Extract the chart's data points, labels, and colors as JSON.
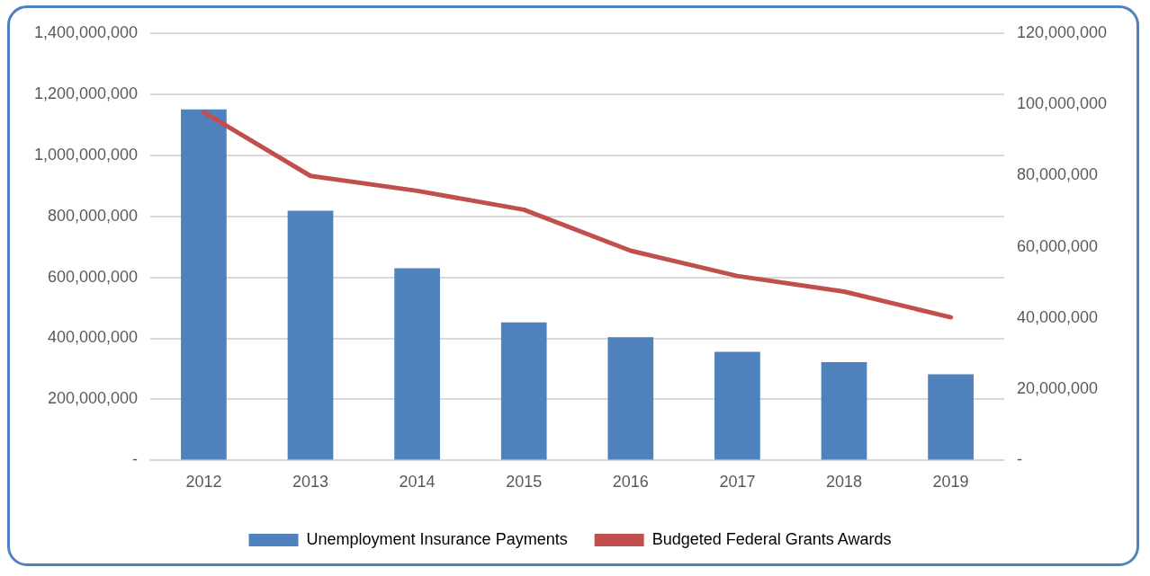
{
  "chart_data": {
    "type": "bar",
    "categories": [
      "2012",
      "2013",
      "2014",
      "2015",
      "2016",
      "2017",
      "2018",
      "2019"
    ],
    "series": [
      {
        "name": "Unemployment Insurance Payments",
        "color": "#4f81bd",
        "values": [
          1150000000,
          818000000,
          630000000,
          452000000,
          404000000,
          356000000,
          322000000,
          282000000
        ]
      },
      {
        "name": "Budgeted Federal Grants Awards",
        "type": "line",
        "axis": "y2",
        "color": "#c0504d",
        "values": [
          97800000,
          79900000,
          75700000,
          70400000,
          58900000,
          51800000,
          47400000,
          40200000
        ]
      }
    ],
    "ylim": [
      0,
      1400000000
    ],
    "yticks": [
      {
        "value": 0,
        "label": "-"
      },
      {
        "value": 200000000,
        "label": "200,000,000"
      },
      {
        "value": 400000000,
        "label": "400,000,000"
      },
      {
        "value": 600000000,
        "label": "600,000,000"
      },
      {
        "value": 800000000,
        "label": "800,000,000"
      },
      {
        "value": 1000000000,
        "label": "1,000,000,000"
      },
      {
        "value": 1200000000,
        "label": "1,200,000,000"
      },
      {
        "value": 1400000000,
        "label": "1,400,000,000"
      }
    ],
    "y2lim": [
      0,
      120000000
    ],
    "y2ticks": [
      {
        "value": 0,
        "label": "-"
      },
      {
        "value": 20000000,
        "label": "20,000,000"
      },
      {
        "value": 40000000,
        "label": "40,000,000"
      },
      {
        "value": 60000000,
        "label": "60,000,000"
      },
      {
        "value": 80000000,
        "label": "80,000,000"
      },
      {
        "value": 100000000,
        "label": "100,000,000"
      },
      {
        "value": 120000000,
        "label": "120,000,000"
      }
    ],
    "grid": "y",
    "legend": "bottom",
    "marker": "none"
  }
}
